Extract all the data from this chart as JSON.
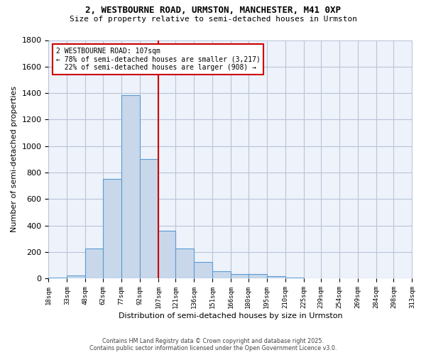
{
  "title_line1": "2, WESTBOURNE ROAD, URMSTON, MANCHESTER, M41 0XP",
  "title_line2": "Size of property relative to semi-detached houses in Urmston",
  "xlabel": "Distribution of semi-detached houses by size in Urmston",
  "ylabel": "Number of semi-detached properties",
  "footer_line1": "Contains HM Land Registry data © Crown copyright and database right 2025.",
  "footer_line2": "Contains public sector information licensed under the Open Government Licence v3.0.",
  "bin_labels": [
    "18sqm",
    "33sqm",
    "48sqm",
    "62sqm",
    "77sqm",
    "92sqm",
    "107sqm",
    "121sqm",
    "136sqm",
    "151sqm",
    "166sqm",
    "180sqm",
    "195sqm",
    "210sqm",
    "225sqm",
    "239sqm",
    "254sqm",
    "269sqm",
    "284sqm",
    "298sqm",
    "313sqm"
  ],
  "bar_heights": [
    10,
    25,
    225,
    750,
    1385,
    900,
    360,
    225,
    125,
    55,
    35,
    35,
    20,
    10,
    5,
    5,
    5,
    3,
    3,
    2
  ],
  "property_size": 107,
  "pct_smaller": 78,
  "pct_larger": 22,
  "n_smaller": 3217,
  "n_larger": 908,
  "bar_color": "#c8d8ea",
  "bar_edge_color": "#5b9bd5",
  "vline_color": "#cc0000",
  "annotation_box_color": "#cc0000",
  "background_color": "#eef2fa",
  "grid_color": "#b8c4d8",
  "ylim": [
    0,
    1800
  ],
  "bin_edges": [
    18,
    33,
    48,
    62,
    77,
    92,
    107,
    121,
    136,
    151,
    166,
    180,
    195,
    210,
    225,
    239,
    254,
    269,
    284,
    298,
    313
  ]
}
